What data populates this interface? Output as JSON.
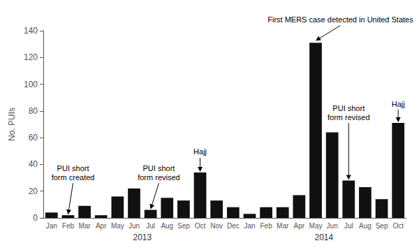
{
  "chart_data": {
    "type": "bar",
    "categories": [
      "Jan",
      "Feb",
      "Mar",
      "Apr",
      "May",
      "Jun",
      "Jul",
      "Aug",
      "Sep",
      "Oct",
      "Nov",
      "Dec",
      "Jan",
      "Feb",
      "Mar",
      "Apr",
      "May",
      "Jun",
      "Jul",
      "Aug",
      "Sep",
      "Oct"
    ],
    "values": [
      4,
      2,
      9,
      2,
      16,
      22,
      6,
      15,
      13,
      34,
      13,
      8,
      3,
      8,
      8,
      17,
      131,
      64,
      28,
      23,
      14,
      71
    ],
    "color": "#111111",
    "ylim": [
      0,
      140
    ],
    "yticks": [
      0,
      20,
      40,
      60,
      80,
      100,
      120,
      140
    ],
    "ylabel": "No. PUIs",
    "grid": false,
    "category_groups": [
      {
        "label": "2013",
        "count": 12
      },
      {
        "label": "2014",
        "count": 10
      }
    ],
    "annotations": [
      {
        "text": "PUI short\nform created",
        "x": 1,
        "y": 2,
        "text_x": 1.3,
        "text_y": 27
      },
      {
        "text": "PUI short\nform revised",
        "x": 6,
        "y": 6,
        "text_x": 6.5,
        "text_y": 27
      },
      {
        "text": "Hajj",
        "x": 9,
        "y": 34,
        "text_x": 9,
        "text_y": 46
      },
      {
        "text": "First MERS case detected in United States",
        "x": 16,
        "y": 132,
        "text_x": 17.5,
        "text_y": 145
      },
      {
        "text": "PUI short\nform revised",
        "x": 18,
        "y": 28,
        "text_x": 18,
        "text_y": 72
      },
      {
        "text": "Hajj",
        "x": 21,
        "y": 71,
        "text_x": 21,
        "text_y": 82
      }
    ]
  }
}
